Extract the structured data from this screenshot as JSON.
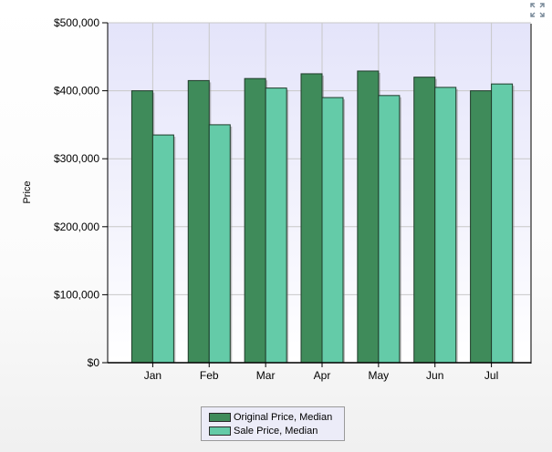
{
  "chart_data": {
    "type": "bar",
    "title": "",
    "xlabel": "",
    "ylabel": "Price",
    "ylim": [
      0,
      500000
    ],
    "yticks": [
      0,
      100000,
      200000,
      300000,
      400000,
      500000
    ],
    "ytick_labels": [
      "$0",
      "$100,000",
      "$200,000",
      "$300,000",
      "$400,000",
      "$500,000"
    ],
    "categories": [
      "Jan",
      "Feb",
      "Mar",
      "Apr",
      "May",
      "Jun",
      "Jul"
    ],
    "grid": true,
    "legend_position": "bottom-center",
    "series": [
      {
        "name": "Original Price, Median",
        "color": "#3f8b5a",
        "values": [
          400000,
          415000,
          418000,
          425000,
          429000,
          420000,
          400000
        ]
      },
      {
        "name": "Sale Price, Median",
        "color": "#64cba8",
        "values": [
          335000,
          350000,
          404000,
          390000,
          393000,
          405000,
          410000
        ]
      }
    ]
  },
  "toolbar": {
    "expand_icon": "expand-arrows-icon"
  }
}
